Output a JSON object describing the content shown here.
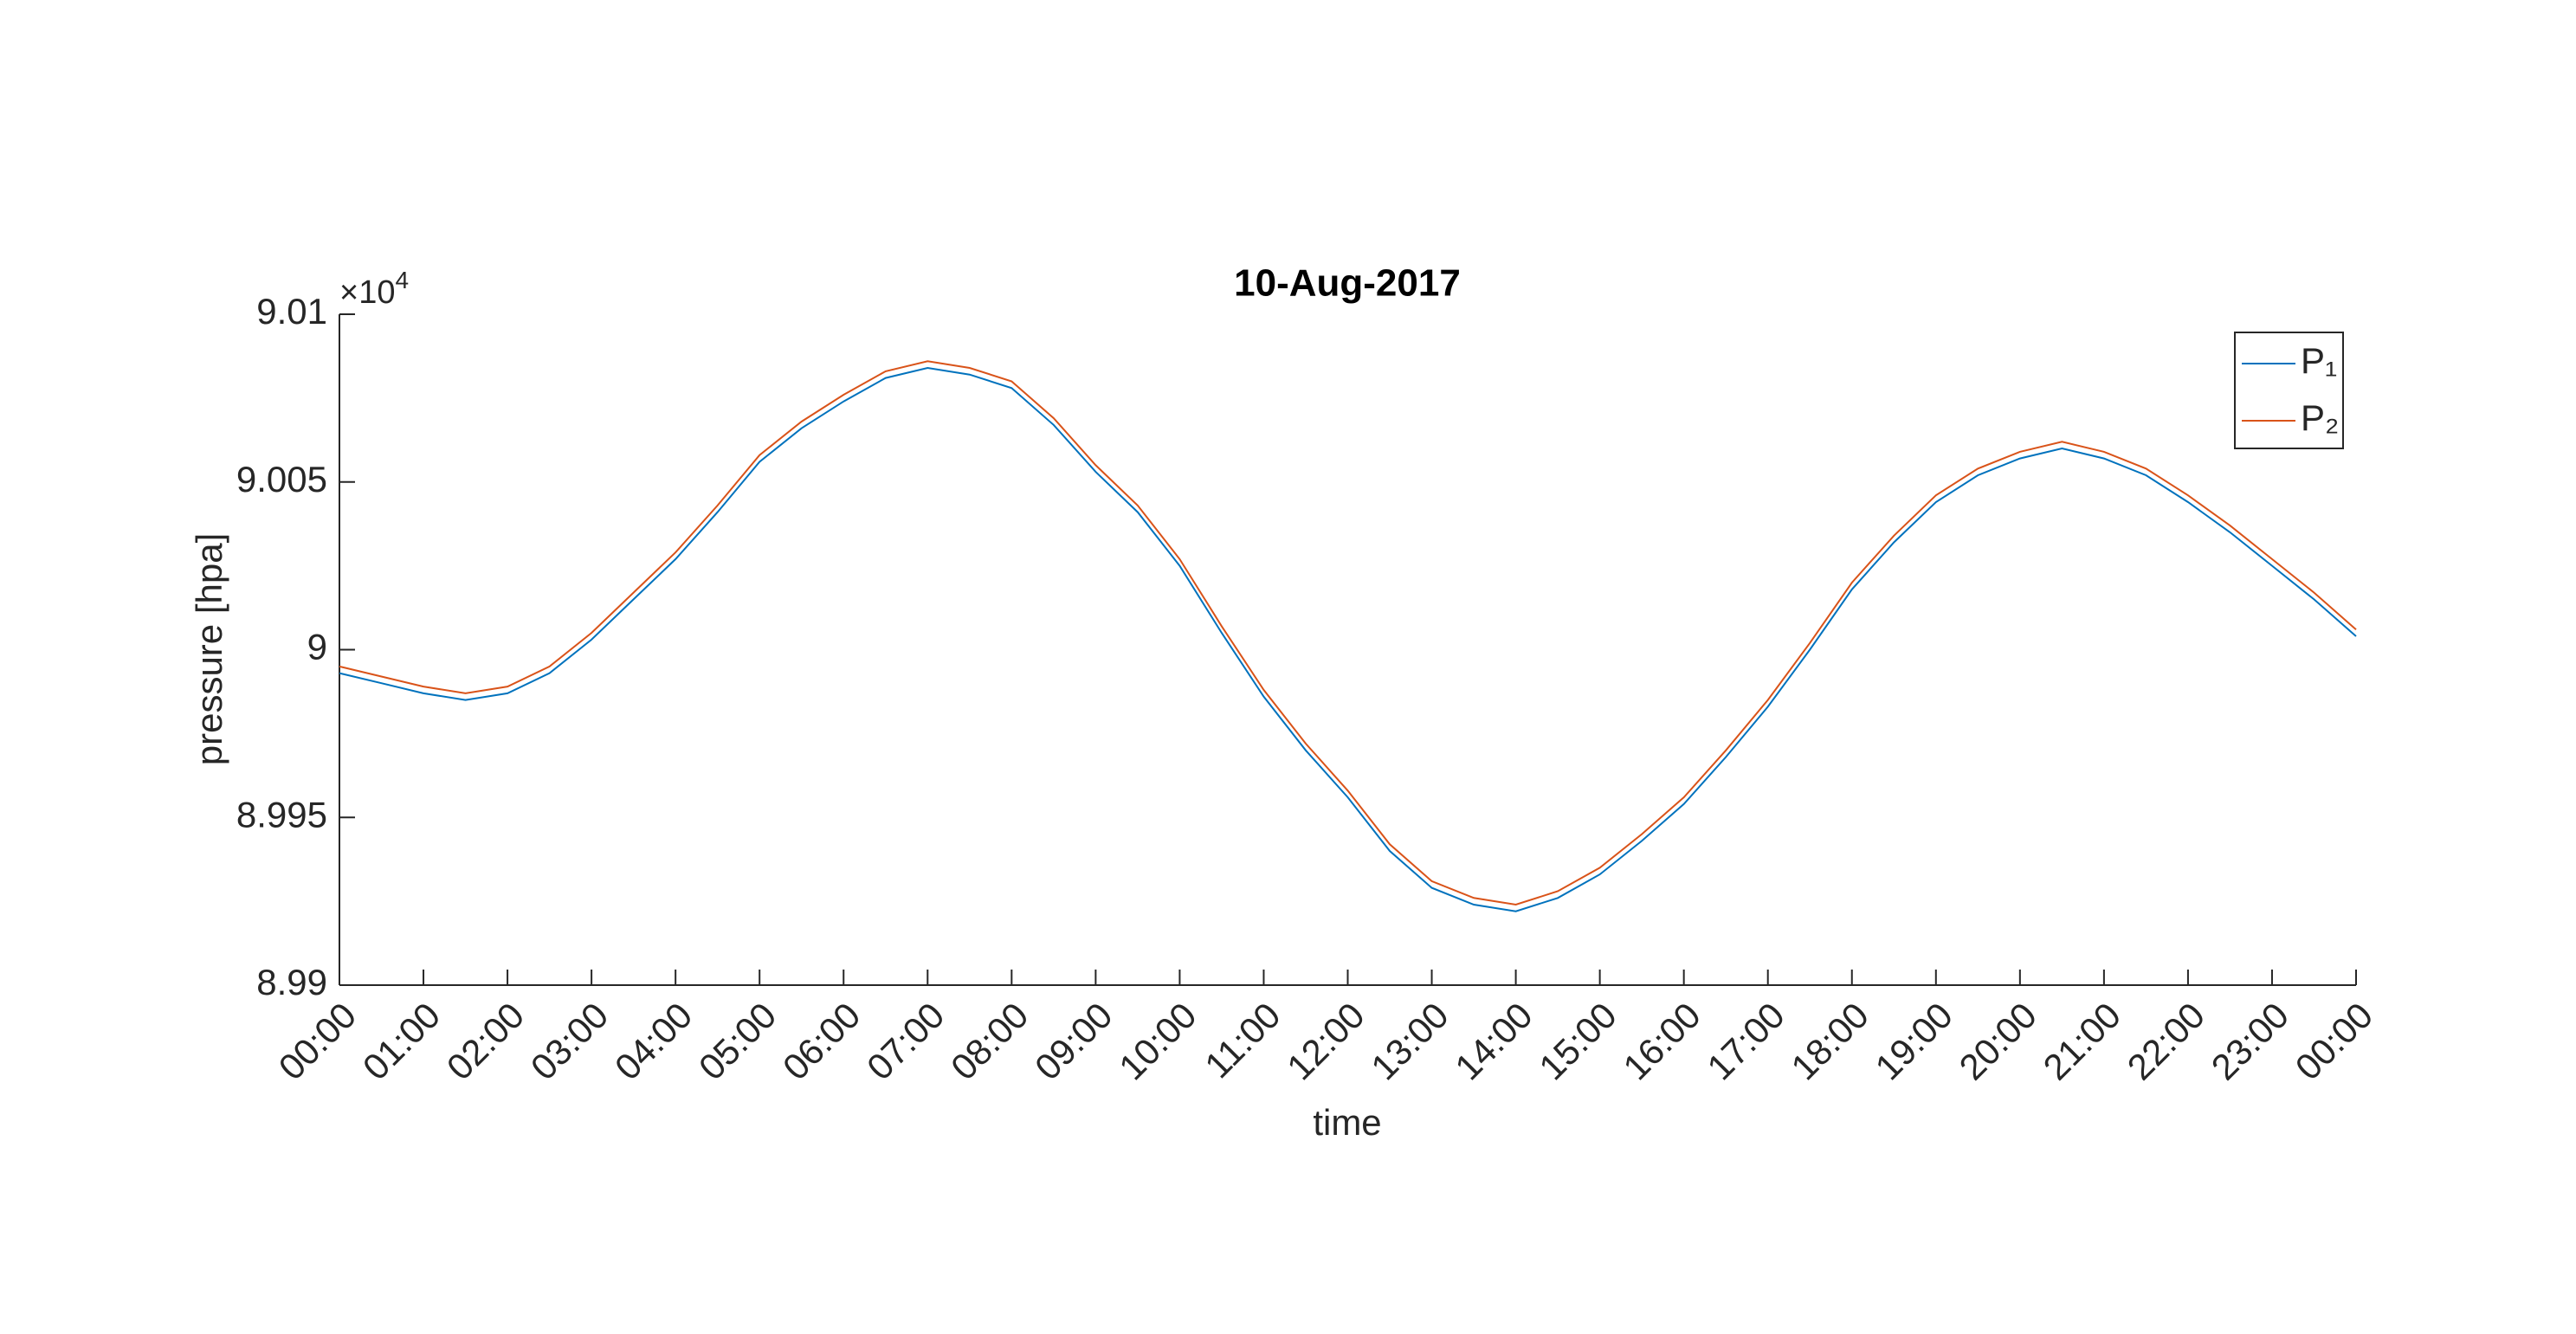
{
  "chart_data": {
    "type": "line",
    "title": "10-Aug-2017",
    "xlabel": "time",
    "ylabel": "pressure [hpa]",
    "y_multiplier": {
      "base": "×10",
      "exponent": 4
    },
    "x": [
      0,
      0.5,
      1,
      1.5,
      2,
      2.5,
      3,
      3.5,
      4,
      4.5,
      5,
      5.5,
      6,
      6.5,
      7,
      7.5,
      8,
      8.5,
      9,
      9.5,
      10,
      10.5,
      11,
      11.5,
      12,
      12.5,
      13,
      13.5,
      14,
      14.5,
      15,
      15.5,
      16,
      16.5,
      17,
      17.5,
      18,
      18.5,
      19,
      19.5,
      20,
      20.5,
      21,
      21.5,
      22,
      22.5,
      23,
      23.5,
      24
    ],
    "series": [
      {
        "name": "P₁",
        "color": "#0072bd",
        "values": [
          8.9993,
          8.999,
          8.9987,
          8.9985,
          8.9987,
          8.9993,
          9.0003,
          9.0015,
          9.0027,
          9.0041,
          9.0056,
          9.0066,
          9.0074,
          9.0081,
          9.0084,
          9.0082,
          9.0078,
          9.0067,
          9.0053,
          9.0041,
          9.0025,
          9.0005,
          8.9986,
          8.997,
          8.9956,
          8.994,
          8.9929,
          8.9924,
          8.9922,
          8.9926,
          8.9933,
          8.9943,
          8.9954,
          8.9968,
          8.9983,
          9.0,
          9.0018,
          9.0032,
          9.0044,
          9.0052,
          9.0057,
          9.006,
          9.0057,
          9.0052,
          9.0044,
          9.0035,
          9.0025,
          9.0015,
          9.0004
        ]
      },
      {
        "name": "P₂",
        "color": "#d95319",
        "values": [
          8.9995,
          8.9992,
          8.9989,
          8.9987,
          8.9989,
          8.9995,
          9.0005,
          9.0017,
          9.0029,
          9.0043,
          9.0058,
          9.0068,
          9.0076,
          9.0083,
          9.0086,
          9.0084,
          9.008,
          9.0069,
          9.0055,
          9.0043,
          9.0027,
          9.0007,
          8.9988,
          8.9972,
          8.9958,
          8.9942,
          8.9931,
          8.9926,
          8.9924,
          8.9928,
          8.9935,
          8.9945,
          8.9956,
          8.997,
          8.9985,
          9.0002,
          9.002,
          9.0034,
          9.0046,
          9.0054,
          9.0059,
          9.0062,
          9.0059,
          9.0054,
          9.0046,
          9.0037,
          9.0027,
          9.0017,
          9.0006
        ]
      }
    ],
    "xlim": [
      0,
      24
    ],
    "xticks": [
      {
        "value": 0,
        "label": "00:00"
      },
      {
        "value": 1,
        "label": "01:00"
      },
      {
        "value": 2,
        "label": "02:00"
      },
      {
        "value": 3,
        "label": "03:00"
      },
      {
        "value": 4,
        "label": "04:00"
      },
      {
        "value": 5,
        "label": "05:00"
      },
      {
        "value": 6,
        "label": "06:00"
      },
      {
        "value": 7,
        "label": "07:00"
      },
      {
        "value": 8,
        "label": "08:00"
      },
      {
        "value": 9,
        "label": "09:00"
      },
      {
        "value": 10,
        "label": "10:00"
      },
      {
        "value": 11,
        "label": "11:00"
      },
      {
        "value": 12,
        "label": "12:00"
      },
      {
        "value": 13,
        "label": "13:00"
      },
      {
        "value": 14,
        "label": "14:00"
      },
      {
        "value": 15,
        "label": "15:00"
      },
      {
        "value": 16,
        "label": "16:00"
      },
      {
        "value": 17,
        "label": "17:00"
      },
      {
        "value": 18,
        "label": "18:00"
      },
      {
        "value": 19,
        "label": "19:00"
      },
      {
        "value": 20,
        "label": "20:00"
      },
      {
        "value": 21,
        "label": "21:00"
      },
      {
        "value": 22,
        "label": "22:00"
      },
      {
        "value": 23,
        "label": "23:00"
      },
      {
        "value": 24,
        "label": "00:00"
      }
    ],
    "ylim": [
      8.99,
      9.01
    ],
    "yticks": [
      8.99,
      8.995,
      9,
      9.005,
      9.01
    ],
    "legend": "upper right"
  }
}
